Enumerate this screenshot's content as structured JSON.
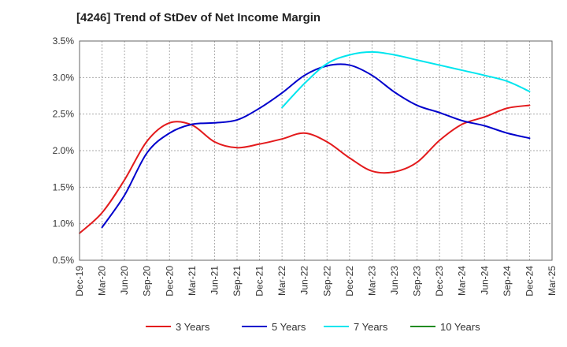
{
  "chart_data": {
    "type": "line",
    "title": "[4246]  Trend of StDev of Net Income Margin",
    "xlabel": "",
    "ylabel": "",
    "ylim": [
      0.5,
      3.5
    ],
    "y_ticks": [
      "0.5%",
      "1.0%",
      "1.5%",
      "2.0%",
      "2.5%",
      "3.0%",
      "3.5%"
    ],
    "y_tick_values": [
      0.5,
      1.0,
      1.5,
      2.0,
      2.5,
      3.0,
      3.5
    ],
    "x_ticks": [
      "Dec-19",
      "Mar-20",
      "Jun-20",
      "Sep-20",
      "Dec-20",
      "Mar-21",
      "Jun-21",
      "Sep-21",
      "Dec-21",
      "Mar-22",
      "Jun-22",
      "Sep-22",
      "Dec-22",
      "Mar-23",
      "Jun-23",
      "Sep-23",
      "Dec-23",
      "Mar-24",
      "Jun-24",
      "Sep-24",
      "Dec-24",
      "Mar-25"
    ],
    "grid": true,
    "legend_position": "bottom",
    "series": [
      {
        "name": "3 Years",
        "color": "#e31a1c",
        "x": [
          "Dec-19",
          "Mar-20",
          "Jun-20",
          "Sep-20",
          "Dec-20",
          "Mar-21",
          "Jun-21",
          "Sep-21",
          "Dec-21",
          "Mar-22",
          "Jun-22",
          "Sep-22",
          "Dec-22",
          "Mar-23",
          "Jun-23",
          "Sep-23",
          "Dec-23",
          "Mar-24",
          "Jun-24",
          "Sep-24",
          "Dec-24"
        ],
        "values": [
          0.87,
          1.15,
          1.6,
          2.13,
          2.38,
          2.35,
          2.12,
          2.04,
          2.09,
          2.16,
          2.24,
          2.12,
          1.9,
          1.72,
          1.71,
          1.84,
          2.14,
          2.36,
          2.46,
          2.58,
          2.62
        ]
      },
      {
        "name": "5 Years",
        "color": "#0000cc",
        "x": [
          "Mar-20",
          "Jun-20",
          "Sep-20",
          "Dec-20",
          "Mar-21",
          "Jun-21",
          "Sep-21",
          "Dec-21",
          "Mar-22",
          "Jun-22",
          "Sep-22",
          "Dec-22",
          "Mar-23",
          "Jun-23",
          "Sep-23",
          "Dec-23",
          "Mar-24",
          "Jun-24",
          "Sep-24",
          "Dec-24"
        ],
        "values": [
          0.95,
          1.39,
          1.97,
          2.24,
          2.36,
          2.38,
          2.42,
          2.58,
          2.79,
          3.03,
          3.16,
          3.17,
          3.03,
          2.8,
          2.62,
          2.52,
          2.41,
          2.34,
          2.24,
          2.17
        ]
      },
      {
        "name": "7 Years",
        "color": "#00e5ee",
        "x": [
          "Mar-22",
          "Jun-22",
          "Sep-22",
          "Dec-22",
          "Mar-23",
          "Jun-23",
          "Sep-23",
          "Dec-23",
          "Mar-24",
          "Jun-24",
          "Sep-24",
          "Dec-24"
        ],
        "values": [
          2.59,
          2.92,
          3.19,
          3.31,
          3.35,
          3.31,
          3.24,
          3.17,
          3.1,
          3.03,
          2.95,
          2.81
        ]
      },
      {
        "name": "10 Years",
        "color": "#228b22",
        "x": [],
        "values": []
      }
    ]
  }
}
